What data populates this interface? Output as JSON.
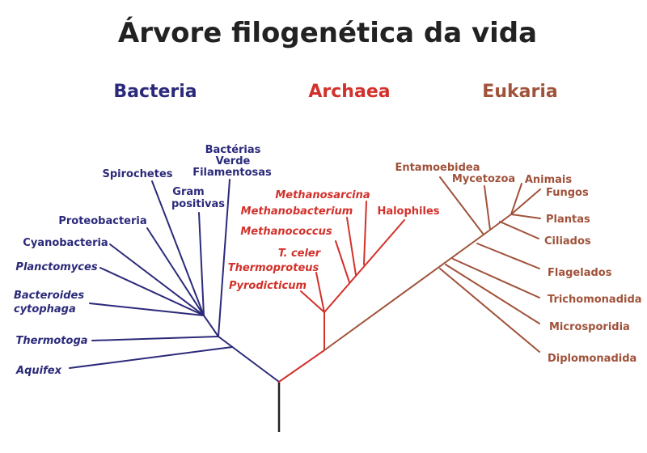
{
  "title": "Árvore filogenética da vida",
  "colors": {
    "bacteria": "#2b2a7a",
    "archaea": "#d2312b",
    "eukaria": "#a0523a",
    "root": "#222222"
  },
  "domains": {
    "bacteria": "Bacteria",
    "archaea": "Archaea",
    "eukaria": "Eukaria"
  },
  "bacteria": {
    "bacterias_verde_1": "Bactérias",
    "bacterias_verde_2": "Verde",
    "bacterias_verde_3": "Filamentosas",
    "spirochetes": "Spirochetes",
    "gram_1": "Gram",
    "gram_2": "positivas",
    "proteobacteria": "Proteobacteria",
    "cyanobacteria": "Cyanobacteria",
    "planctomyces": "Planctomyces",
    "bacteroides_1": "Bacteroides",
    "bacteroides_2": "cytophaga",
    "thermotoga": "Thermotoga",
    "aquifex": "Aquifex"
  },
  "archaea": {
    "methanosarcina": "Methanosarcina",
    "methanobacterium": "Methanobacterium",
    "halophiles": "Halophiles",
    "methanococcus": "Methanococcus",
    "t_celer": "T. celer",
    "thermoproteus": "Thermoproteus",
    "pyrodicticum": "Pyrodicticum"
  },
  "eukaria": {
    "entamoebidea": "Entamoebidea",
    "mycetozoa": "Mycetozoa",
    "animais": "Animais",
    "fungos": "Fungos",
    "plantas": "Plantas",
    "ciliados": "Ciliados",
    "flagelados": "Flagelados",
    "trichomonadida": "Trichomonadida",
    "microsporidia": "Microsporidia",
    "diplomonadida": "Diplomonadida"
  }
}
